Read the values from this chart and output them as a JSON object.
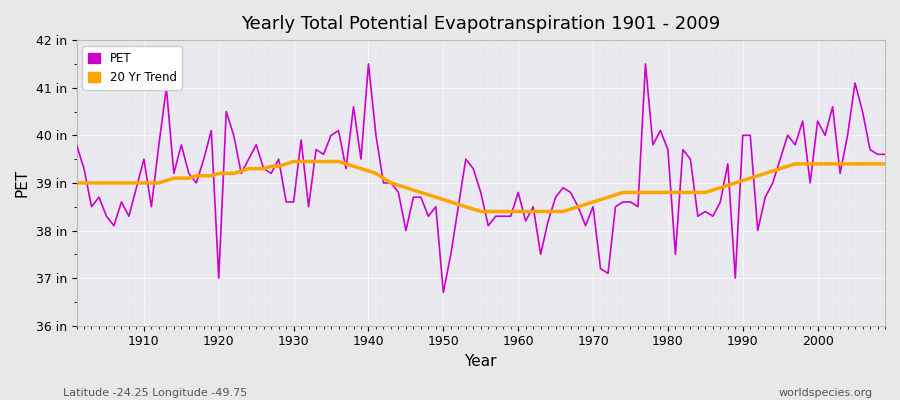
{
  "title": "Yearly Total Potential Evapotranspiration 1901 - 2009",
  "xlabel": "Year",
  "ylabel": "PET",
  "subtitle": "Latitude -24.25 Longitude -49.75",
  "watermark": "worldspecies.org",
  "ylim": [
    36,
    42
  ],
  "ytick_labels": [
    "36 in",
    "37 in",
    "38 in",
    "39 in",
    "40 in",
    "41 in",
    "42 in"
  ],
  "ytick_values": [
    36,
    37,
    38,
    39,
    40,
    41,
    42
  ],
  "pet_color": "#CC00CC",
  "trend_color": "#FFA500",
  "trend_linewidth": 2.5,
  "pet_linewidth": 1.2,
  "fig_bg_color": "#E8E8E8",
  "plot_bg_color": "#E8E8EE",
  "years": [
    1901,
    1902,
    1903,
    1904,
    1905,
    1906,
    1907,
    1908,
    1909,
    1910,
    1911,
    1912,
    1913,
    1914,
    1915,
    1916,
    1917,
    1918,
    1919,
    1920,
    1921,
    1922,
    1923,
    1924,
    1925,
    1926,
    1927,
    1928,
    1929,
    1930,
    1931,
    1932,
    1933,
    1934,
    1935,
    1936,
    1937,
    1938,
    1939,
    1940,
    1941,
    1942,
    1943,
    1944,
    1945,
    1946,
    1947,
    1948,
    1949,
    1950,
    1951,
    1952,
    1953,
    1954,
    1955,
    1956,
    1957,
    1958,
    1959,
    1960,
    1961,
    1962,
    1963,
    1964,
    1965,
    1966,
    1967,
    1968,
    1969,
    1970,
    1971,
    1972,
    1973,
    1974,
    1975,
    1976,
    1977,
    1978,
    1979,
    1980,
    1981,
    1982,
    1983,
    1984,
    1985,
    1986,
    1987,
    1988,
    1989,
    1990,
    1991,
    1992,
    1993,
    1994,
    1995,
    1996,
    1997,
    1998,
    1999,
    2000,
    2001,
    2002,
    2003,
    2004,
    2005,
    2006,
    2007,
    2008,
    2009
  ],
  "pet_values": [
    39.8,
    39.3,
    38.5,
    38.7,
    38.3,
    38.1,
    38.6,
    38.3,
    38.9,
    39.5,
    38.5,
    39.8,
    41.0,
    39.2,
    39.8,
    39.2,
    39.0,
    39.5,
    40.1,
    37.0,
    40.5,
    40.0,
    39.2,
    39.5,
    39.8,
    39.3,
    39.2,
    39.5,
    38.6,
    38.6,
    39.9,
    38.5,
    39.7,
    39.6,
    40.0,
    40.1,
    39.3,
    40.6,
    39.5,
    41.5,
    40.0,
    39.0,
    39.0,
    38.8,
    38.0,
    38.7,
    38.7,
    38.3,
    38.5,
    36.7,
    37.5,
    38.5,
    39.5,
    39.3,
    38.8,
    38.1,
    38.3,
    38.3,
    38.3,
    38.8,
    38.2,
    38.5,
    37.5,
    38.2,
    38.7,
    38.9,
    38.8,
    38.5,
    38.1,
    38.5,
    37.2,
    37.1,
    38.5,
    38.6,
    38.6,
    38.5,
    41.5,
    39.8,
    40.1,
    39.7,
    37.5,
    39.7,
    39.5,
    38.3,
    38.4,
    38.3,
    38.6,
    39.4,
    37.0,
    40.0,
    40.0,
    38.0,
    38.7,
    39.0,
    39.5,
    40.0,
    39.8,
    40.3,
    39.0,
    40.3,
    40.0,
    40.6,
    39.2,
    40.0,
    41.1,
    40.5,
    39.7,
    39.6,
    39.6
  ],
  "trend_years": [
    1901,
    1902,
    1903,
    1904,
    1905,
    1906,
    1907,
    1908,
    1909,
    1910,
    1911,
    1912,
    1913,
    1914,
    1915,
    1916,
    1917,
    1918,
    1919,
    1920,
    1921,
    1922,
    1923,
    1924,
    1925,
    1926,
    1927,
    1928,
    1929,
    1930,
    1931,
    1932,
    1933,
    1934,
    1935,
    1936,
    1937,
    1938,
    1939,
    1940,
    1941,
    1942,
    1943,
    1944,
    1945,
    1946,
    1947,
    1948,
    1949,
    1950,
    1951,
    1952,
    1953,
    1954,
    1955,
    1956,
    1957,
    1958,
    1959,
    1960,
    1961,
    1962,
    1963,
    1964,
    1965,
    1966,
    1967,
    1968,
    1969,
    1970,
    1971,
    1972,
    1973,
    1974,
    1975,
    1976,
    1977,
    1978,
    1979,
    1980,
    1981,
    1982,
    1983,
    1984,
    1985,
    1986,
    1987,
    1988,
    1989,
    1990,
    1991,
    1992,
    1993,
    1994,
    1995,
    1996,
    1997,
    1998,
    1999,
    2000,
    2001,
    2002,
    2003,
    2004,
    2005,
    2006,
    2007,
    2008,
    2009
  ],
  "trend_values": [
    39.0,
    39.0,
    39.0,
    39.0,
    39.0,
    39.0,
    39.0,
    39.0,
    39.0,
    39.0,
    39.0,
    39.0,
    39.05,
    39.1,
    39.1,
    39.1,
    39.15,
    39.15,
    39.15,
    39.2,
    39.2,
    39.2,
    39.25,
    39.3,
    39.3,
    39.3,
    39.35,
    39.35,
    39.4,
    39.45,
    39.45,
    39.45,
    39.45,
    39.45,
    39.45,
    39.45,
    39.4,
    39.35,
    39.3,
    39.25,
    39.2,
    39.1,
    39.0,
    38.95,
    38.9,
    38.85,
    38.8,
    38.75,
    38.7,
    38.65,
    38.6,
    38.55,
    38.5,
    38.45,
    38.4,
    38.4,
    38.4,
    38.4,
    38.4,
    38.4,
    38.4,
    38.4,
    38.4,
    38.4,
    38.4,
    38.4,
    38.45,
    38.5,
    38.55,
    38.6,
    38.65,
    38.7,
    38.75,
    38.8,
    38.8,
    38.8,
    38.8,
    38.8,
    38.8,
    38.8,
    38.8,
    38.8,
    38.8,
    38.8,
    38.8,
    38.85,
    38.9,
    38.95,
    39.0,
    39.05,
    39.1,
    39.15,
    39.2,
    39.25,
    39.3,
    39.35,
    39.4,
    39.4,
    39.4,
    39.4,
    39.4,
    39.4,
    39.4,
    39.4,
    39.4,
    39.4,
    39.4,
    39.4,
    39.4
  ]
}
